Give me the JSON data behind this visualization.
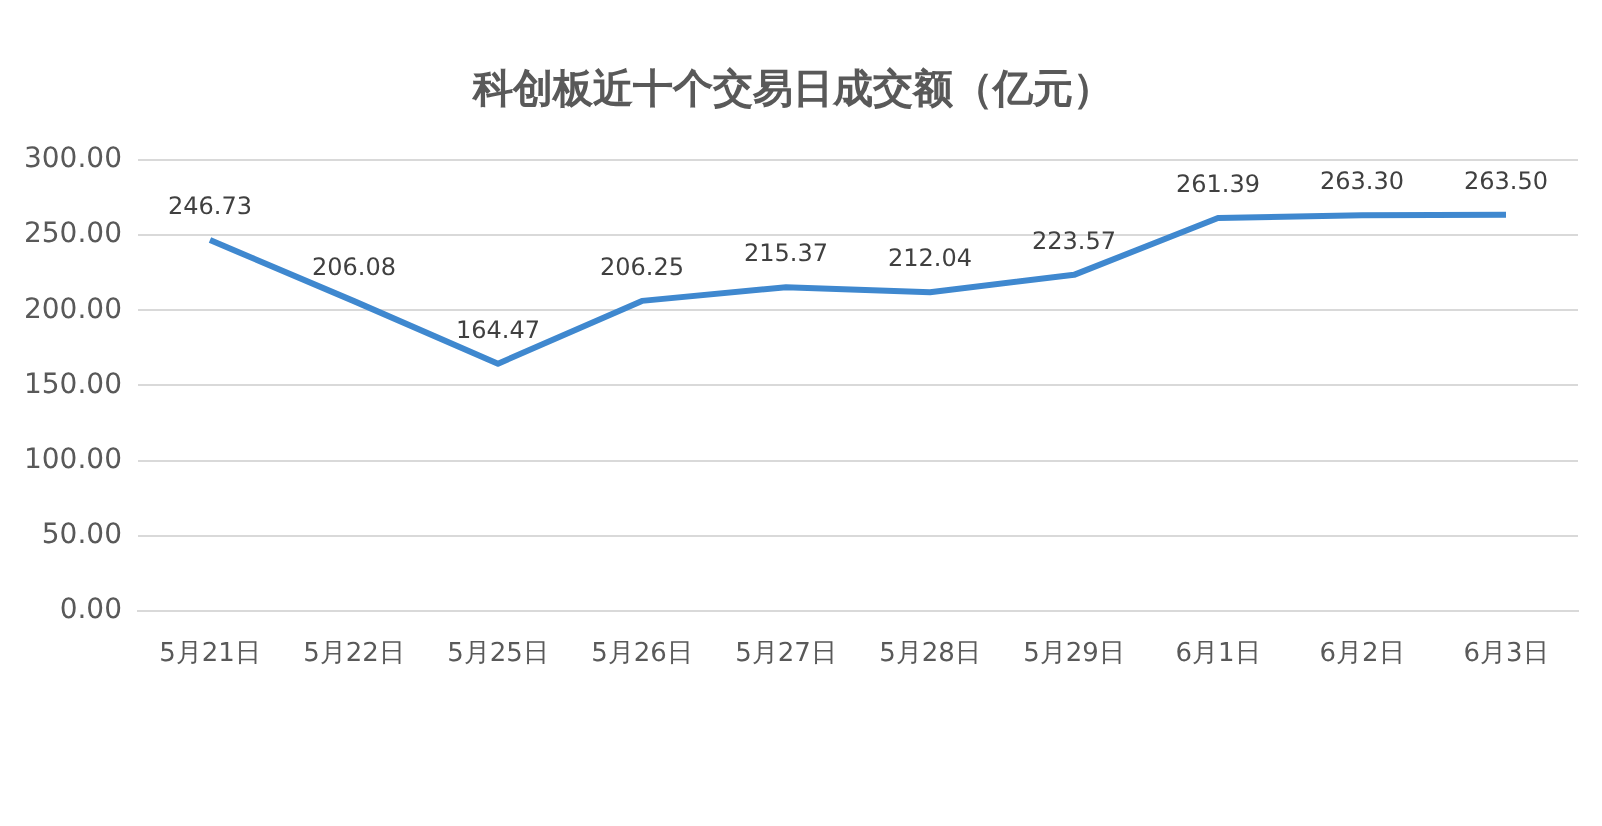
{
  "chart_data": {
    "type": "line",
    "title": "科创板近十个交易日成交额（亿元）",
    "categories": [
      "5月21日",
      "5月22日",
      "5月25日",
      "5月26日",
      "5月27日",
      "5月28日",
      "5月29日",
      "6月1日",
      "6月2日",
      "6月3日"
    ],
    "series": [
      {
        "color": "#3f88cf",
        "values": [
          246.73,
          206.08,
          164.47,
          206.25,
          215.37,
          212.04,
          223.57,
          261.39,
          263.3,
          263.5
        ],
        "value_labels": [
          "246.73",
          "206.08",
          "164.47",
          "206.25",
          "215.37",
          "212.04",
          "223.57",
          "261.39",
          "263.30",
          "263.50"
        ]
      }
    ],
    "ylim": [
      0,
      300
    ],
    "yticks": [
      {
        "value": 0,
        "label": "0.00"
      },
      {
        "value": 50,
        "label": "50.00"
      },
      {
        "value": 100,
        "label": "100.00"
      },
      {
        "value": 150,
        "label": "150.00"
      },
      {
        "value": 200,
        "label": "200.00"
      },
      {
        "value": 250,
        "label": "250.00"
      },
      {
        "value": 300,
        "label": "300.00"
      }
    ],
    "grid": "y",
    "legend": false,
    "marker": "none",
    "line_style": "solid"
  }
}
